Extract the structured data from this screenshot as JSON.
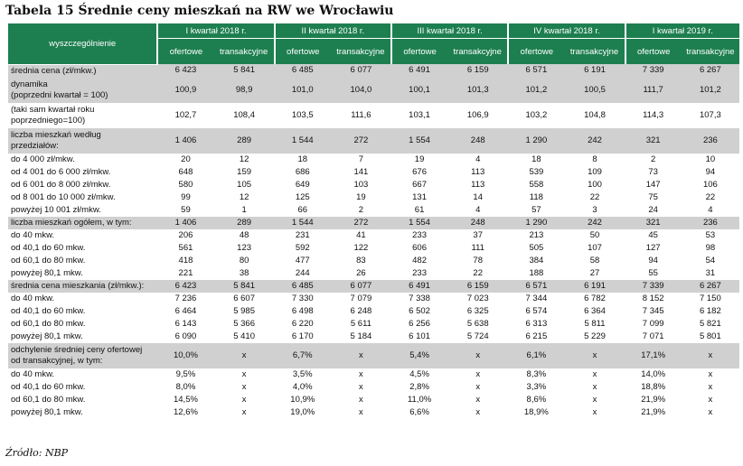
{
  "title": "Tabela 15 Średnie ceny mieszkań na RW we Wrocławiu",
  "header": {
    "label": "wyszczególnienie",
    "quarters": [
      "I kwartał 2018 r.",
      "II kwartał 2018 r.",
      "III kwartał 2018 r.",
      "IV kwartał 2018 r.",
      "I kwartał 2019 r."
    ],
    "sub": [
      "ofertowe",
      "transakcyjne"
    ]
  },
  "rows": [
    {
      "label": "średnia cena (zł/mkw.)",
      "values": [
        "6 423",
        "5 841",
        "6 485",
        "6 077",
        "6 491",
        "6 159",
        "6 571",
        "6 191",
        "7 339",
        "6 267"
      ],
      "grey": true
    },
    {
      "label": "dynamika\n(poprzedni kwartał = 100)",
      "values": [
        "100,9",
        "98,9",
        "101,0",
        "104,0",
        "100,1",
        "101,3",
        "101,2",
        "100,5",
        "111,7",
        "101,2"
      ],
      "grey": true
    },
    {
      "label": "(taki sam kwartał roku\npoprzedniego=100)",
      "values": [
        "102,7",
        "108,4",
        "103,5",
        "111,6",
        "103,1",
        "106,9",
        "103,2",
        "104,8",
        "114,3",
        "107,3"
      ],
      "grey": false
    },
    {
      "label": "liczba mieszkań według\nprzedziałów:",
      "values": [
        "1 406",
        "289",
        "1 544",
        "272",
        "1 554",
        "248",
        "1 290",
        "242",
        "321",
        "236"
      ],
      "grey": true
    },
    {
      "label": "do 4 000 zł/mkw.",
      "values": [
        "20",
        "12",
        "18",
        "7",
        "19",
        "4",
        "18",
        "8",
        "2",
        "10"
      ],
      "grey": false
    },
    {
      "label": "od 4 001 do 6 000 zł/mkw.",
      "values": [
        "648",
        "159",
        "686",
        "141",
        "676",
        "113",
        "539",
        "109",
        "73",
        "94"
      ],
      "grey": false
    },
    {
      "label": "od 6 001 do 8 000 zł/mkw.",
      "values": [
        "580",
        "105",
        "649",
        "103",
        "667",
        "113",
        "558",
        "100",
        "147",
        "106"
      ],
      "grey": false
    },
    {
      "label": "od 8 001 do 10 000 zł/mkw.",
      "values": [
        "99",
        "12",
        "125",
        "19",
        "131",
        "14",
        "118",
        "22",
        "75",
        "22"
      ],
      "grey": false
    },
    {
      "label": "powyżej 10 001 zł/mkw.",
      "values": [
        "59",
        "1",
        "66",
        "2",
        "61",
        "4",
        "57",
        "3",
        "24",
        "4"
      ],
      "grey": false
    },
    {
      "label": "liczba mieszkań ogółem, w tym:",
      "values": [
        "1 406",
        "289",
        "1 544",
        "272",
        "1 554",
        "248",
        "1 290",
        "242",
        "321",
        "236"
      ],
      "grey": true
    },
    {
      "label": "do 40 mkw.",
      "values": [
        "206",
        "48",
        "231",
        "41",
        "233",
        "37",
        "213",
        "50",
        "45",
        "53"
      ],
      "grey": false
    },
    {
      "label": "od 40,1 do 60 mkw.",
      "values": [
        "561",
        "123",
        "592",
        "122",
        "606",
        "111",
        "505",
        "107",
        "127",
        "98"
      ],
      "grey": false
    },
    {
      "label": "od 60,1 do 80 mkw.",
      "values": [
        "418",
        "80",
        "477",
        "83",
        "482",
        "78",
        "384",
        "58",
        "94",
        "54"
      ],
      "grey": false
    },
    {
      "label": "powyżej 80,1 mkw.",
      "values": [
        "221",
        "38",
        "244",
        "26",
        "233",
        "22",
        "188",
        "27",
        "55",
        "31"
      ],
      "grey": false
    },
    {
      "label": "średnia cena mieszkania (zł/mkw.):",
      "values": [
        "6 423",
        "5 841",
        "6 485",
        "6 077",
        "6 491",
        "6 159",
        "6 571",
        "6 191",
        "7 339",
        "6 267"
      ],
      "grey": true
    },
    {
      "label": "do 40 mkw.",
      "values": [
        "7 236",
        "6 607",
        "7 330",
        "7 079",
        "7 338",
        "7 023",
        "7 344",
        "6 782",
        "8 152",
        "7 150"
      ],
      "grey": false
    },
    {
      "label": "od 40,1 do 60 mkw.",
      "values": [
        "6 464",
        "5 985",
        "6 498",
        "6 248",
        "6 502",
        "6 325",
        "6 574",
        "6 364",
        "7 345",
        "6 182"
      ],
      "grey": false
    },
    {
      "label": "od 60,1 do 80 mkw.",
      "values": [
        "6 143",
        "5 366",
        "6 220",
        "5 611",
        "6 256",
        "5 638",
        "6 313",
        "5 811",
        "7 099",
        "5 821"
      ],
      "grey": false
    },
    {
      "label": "powyżej 80,1 mkw.",
      "values": [
        "6 090",
        "5 410",
        "6 170",
        "5 184",
        "6 101",
        "5 724",
        "6 215",
        "5 229",
        "7 071",
        "5 801"
      ],
      "grey": false
    },
    {
      "label": "odchylenie średniej ceny ofertowej\nod transakcyjnej, w tym:",
      "values": [
        "10,0%",
        "x",
        "6,7%",
        "x",
        "5,4%",
        "x",
        "6,1%",
        "x",
        "17,1%",
        "x"
      ],
      "grey": true
    },
    {
      "label": "do 40 mkw.",
      "values": [
        "9,5%",
        "x",
        "3,5%",
        "x",
        "4,5%",
        "x",
        "8,3%",
        "x",
        "14,0%",
        "x"
      ],
      "grey": false
    },
    {
      "label": "od 40,1 do 60 mkw.",
      "values": [
        "8,0%",
        "x",
        "4,0%",
        "x",
        "2,8%",
        "x",
        "3,3%",
        "x",
        "18,8%",
        "x"
      ],
      "grey": false
    },
    {
      "label": "od 60,1 do 80 mkw.",
      "values": [
        "14,5%",
        "x",
        "10,9%",
        "x",
        "11,0%",
        "x",
        "8,6%",
        "x",
        "21,9%",
        "x"
      ],
      "grey": false
    },
    {
      "label": "powyżej 80,1 mkw.",
      "values": [
        "12,6%",
        "x",
        "19,0%",
        "x",
        "6,6%",
        "x",
        "18,9%",
        "x",
        "21,9%",
        "x"
      ],
      "grey": false
    }
  ],
  "source": "Źródło: NBP"
}
